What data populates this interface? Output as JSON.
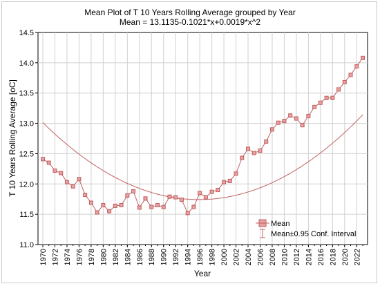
{
  "chart_data": {
    "type": "line",
    "title": "Mean Plot of T 10 Years Rolling Average grouped by  Year",
    "subtitle": "Mean = 13.1135-0.1021*x+0.0019*x^2",
    "xlabel": "Year",
    "ylabel": "T 10 Years Rolling Average [oC]",
    "xlim": [
      1970,
      2023
    ],
    "ylim": [
      11.0,
      14.5
    ],
    "yticks": [
      "11.0",
      "11.5",
      "12.0",
      "12.5",
      "13.0",
      "13.5",
      "14.0",
      "14.5"
    ],
    "xticks": [
      "1970",
      "1972",
      "1974",
      "1976",
      "1978",
      "1980",
      "1982",
      "1984",
      "1986",
      "1988",
      "1990",
      "1992",
      "1994",
      "1996",
      "1998",
      "2000",
      "2002",
      "2004",
      "2006",
      "2008",
      "2010",
      "2012",
      "2014",
      "2016",
      "2018",
      "2020",
      "2022"
    ],
    "grid": true,
    "legend_position": "bottom-right",
    "series": [
      {
        "name": "Mean",
        "color": "#c06060",
        "marker": "square",
        "x": [
          1970,
          1971,
          1972,
          1973,
          1974,
          1975,
          1976,
          1977,
          1978,
          1979,
          1980,
          1981,
          1982,
          1983,
          1984,
          1985,
          1986,
          1987,
          1988,
          1989,
          1990,
          1991,
          1992,
          1993,
          1994,
          1995,
          1996,
          1997,
          1998,
          1999,
          2000,
          2001,
          2002,
          2003,
          2004,
          2005,
          2006,
          2007,
          2008,
          2009,
          2010,
          2011,
          2012,
          2013,
          2014,
          2015,
          2016,
          2017,
          2018,
          2019,
          2020,
          2021,
          2022,
          2023
        ],
        "values": [
          12.41,
          12.35,
          12.22,
          12.18,
          12.03,
          11.96,
          12.08,
          11.82,
          11.69,
          11.53,
          11.65,
          11.55,
          11.64,
          11.65,
          11.81,
          11.88,
          11.61,
          11.76,
          11.62,
          11.65,
          11.62,
          11.79,
          11.78,
          11.74,
          11.52,
          11.62,
          11.85,
          11.78,
          11.87,
          11.9,
          12.03,
          12.05,
          12.17,
          12.43,
          12.58,
          12.51,
          12.55,
          12.7,
          12.9,
          13.01,
          13.04,
          13.13,
          13.08,
          12.97,
          13.12,
          13.27,
          13.34,
          13.42,
          13.42,
          13.56,
          13.68,
          13.8,
          13.94,
          14.08
        ]
      },
      {
        "name": "Mean±0.95 Conf. Interval",
        "color": "#c06060",
        "marker": "error-bar",
        "fit": {
          "a": 13.1135,
          "b": -0.1021,
          "c": 0.0019,
          "x_origin": 1970
        }
      }
    ]
  }
}
